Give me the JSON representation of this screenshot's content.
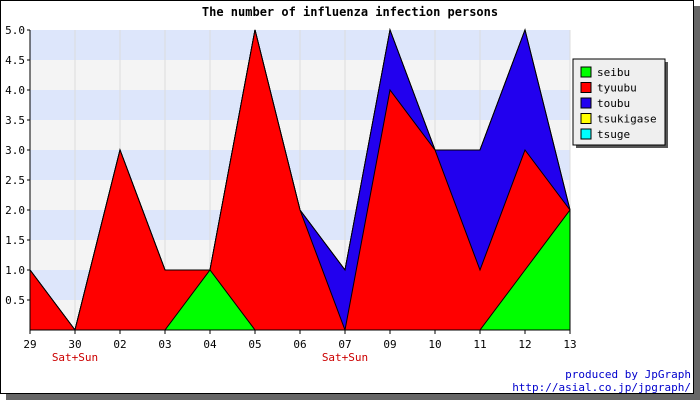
{
  "chart_data": {
    "type": "area",
    "title": "The number of influenza infection persons",
    "categories": [
      "29",
      "30",
      "02",
      "03",
      "04",
      "05",
      "06",
      "07",
      "09",
      "10",
      "11",
      "12",
      "13"
    ],
    "weekend_labels": [
      {
        "category": "30",
        "text": "Sat+Sun"
      },
      {
        "category": "07",
        "text": "Sat+Sun"
      }
    ],
    "stacked": true,
    "series": [
      {
        "name": "seibu",
        "color": "#00ff00",
        "values": [
          0,
          0,
          0,
          0,
          1,
          0,
          0,
          0,
          0,
          0,
          0,
          1,
          2
        ]
      },
      {
        "name": "tyuubu",
        "color": "#ff0000",
        "values": [
          1,
          0,
          3,
          1,
          0,
          5,
          2,
          0,
          4,
          3,
          1,
          2,
          0
        ]
      },
      {
        "name": "toubu",
        "color": "#2200ee",
        "values": [
          0,
          0,
          0,
          0,
          0,
          0,
          0,
          1,
          1,
          0,
          2,
          2,
          0
        ]
      },
      {
        "name": "tsukigase",
        "color": "#ffff00",
        "values": [
          0,
          0,
          0,
          0,
          0,
          0,
          0,
          0,
          0,
          0,
          0,
          0,
          0
        ]
      },
      {
        "name": "tsuge",
        "color": "#00ffff",
        "values": [
          0,
          0,
          0,
          0,
          0,
          0,
          0,
          0,
          0,
          0,
          0,
          0,
          0
        ]
      }
    ],
    "ylim": [
      0,
      5
    ],
    "yticks": [
      "0.5",
      "1.0",
      "1.5",
      "2.0",
      "2.5",
      "3.0",
      "3.5",
      "4.0",
      "4.5",
      "5.0"
    ],
    "grid": true,
    "legend_position": "right"
  },
  "footer": {
    "line1": "produced by JpGraph",
    "line2": "http://asial.co.jp/jpgraph/"
  }
}
